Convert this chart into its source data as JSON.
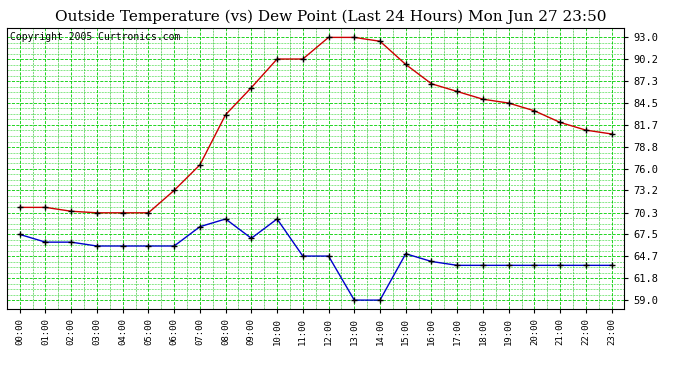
{
  "title": "Outside Temperature (vs) Dew Point (Last 24 Hours) Mon Jun 27 23:50",
  "copyright": "Copyright 2005 Curtronics.com",
  "x_labels": [
    "00:00",
    "01:00",
    "02:00",
    "03:00",
    "04:00",
    "05:00",
    "06:00",
    "07:00",
    "08:00",
    "09:00",
    "10:00",
    "11:00",
    "12:00",
    "13:00",
    "14:00",
    "15:00",
    "16:00",
    "17:00",
    "18:00",
    "19:00",
    "20:00",
    "21:00",
    "22:00",
    "23:00"
  ],
  "y_ticks": [
    59.0,
    61.8,
    64.7,
    67.5,
    70.3,
    73.2,
    76.0,
    78.8,
    81.7,
    84.5,
    87.3,
    90.2,
    93.0
  ],
  "ylim": [
    57.8,
    94.2
  ],
  "temp_data": [
    71.0,
    71.0,
    70.5,
    70.3,
    70.3,
    70.3,
    73.2,
    76.5,
    83.0,
    86.5,
    90.2,
    90.2,
    93.0,
    93.0,
    92.5,
    89.5,
    87.0,
    86.0,
    85.0,
    84.5,
    83.5,
    82.0,
    81.0,
    80.5
  ],
  "dew_data": [
    67.5,
    66.5,
    66.5,
    66.0,
    66.0,
    66.0,
    66.0,
    68.5,
    69.5,
    67.0,
    69.5,
    64.7,
    64.7,
    59.0,
    59.0,
    65.0,
    64.0,
    63.5,
    63.5,
    63.5,
    63.5,
    63.5,
    63.5,
    63.5
  ],
  "temp_color": "#cc0000",
  "dew_color": "#0000cc",
  "bg_color": "#ffffff",
  "grid_color": "#00cc00",
  "title_fontsize": 11,
  "copyright_fontsize": 7
}
